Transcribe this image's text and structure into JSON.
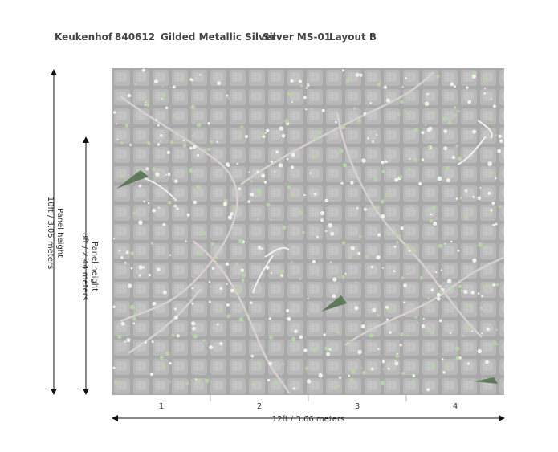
{
  "header": {
    "items": [
      "Keukenhof",
      "840612",
      "Gilded Metallic Silver",
      "Silver MS-01",
      "Layout B"
    ]
  },
  "panels": [
    "1",
    "2",
    "3",
    "4"
  ],
  "width_label": "12ft  / 3.66 meters",
  "full_height": {
    "title": "Panel height",
    "label": "10ft / 3.05 meters"
  },
  "panel_height": {
    "title": "Panel height",
    "label": "8ft / 2.44 meters"
  }
}
